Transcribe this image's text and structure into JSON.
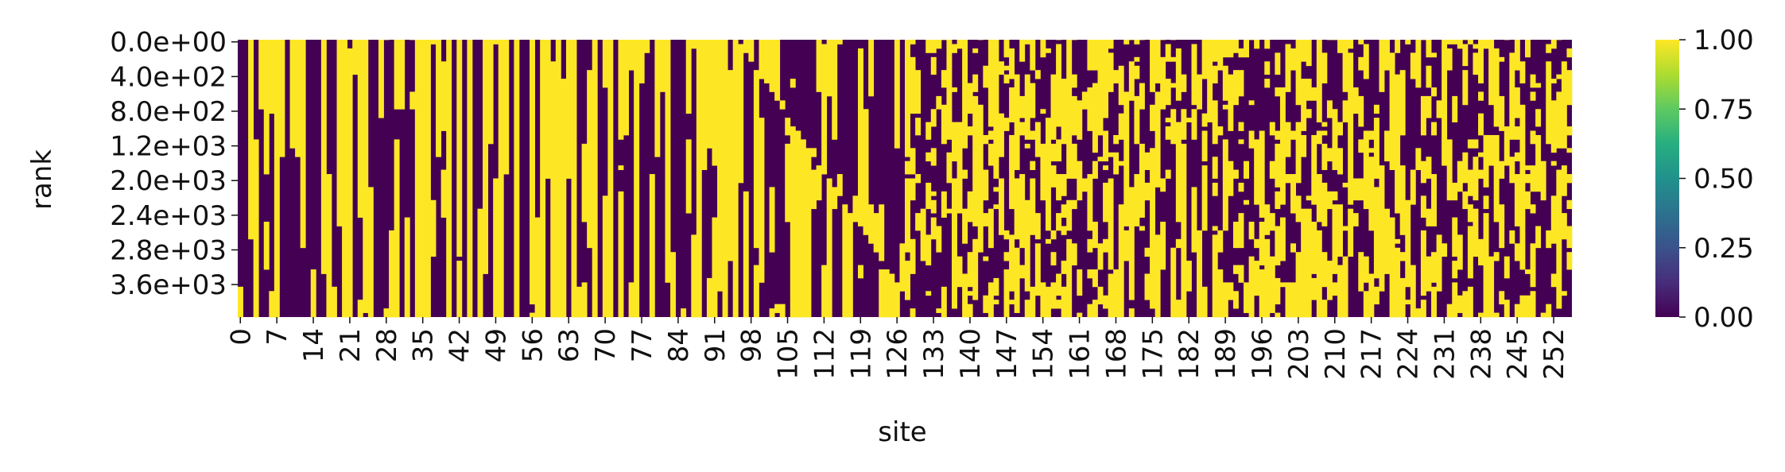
{
  "chart_data": {
    "type": "heatmap",
    "title": "",
    "xlabel": "site",
    "ylabel": "rank",
    "x_tick_labels": [
      "0",
      "7",
      "14",
      "21",
      "28",
      "35",
      "42",
      "49",
      "56",
      "63",
      "70",
      "77",
      "84",
      "91",
      "98",
      "105",
      "112",
      "119",
      "126",
      "133",
      "140",
      "147",
      "154",
      "161",
      "168",
      "175",
      "182",
      "189",
      "196",
      "203",
      "210",
      "217",
      "224",
      "231",
      "238",
      "245",
      "252"
    ],
    "x_tick_step": 7,
    "n_columns": 256,
    "y_tick_labels": [
      "0.0e+00",
      "4.0e+02",
      "8.0e+02",
      "1.2e+03",
      "2.0e+03",
      "2.4e+03",
      "2.8e+03",
      "3.6e+03"
    ],
    "n_rows": 64,
    "y_tick_step": 8,
    "value_range": [
      0,
      1
    ],
    "colormap": "viridis",
    "colors": {
      "low": "#440154",
      "high": "#fde725"
    },
    "colorbar": {
      "tick_labels": [
        "0.00",
        "0.25",
        "0.50",
        "0.75",
        "1.00"
      ],
      "ticks": [
        0,
        0.25,
        0.5,
        0.75,
        1.0
      ]
    },
    "grid": false,
    "values_note": "binary cell values (0 or 1) shown as dark purple / yellow stripes; individual cell values are not printed"
  }
}
